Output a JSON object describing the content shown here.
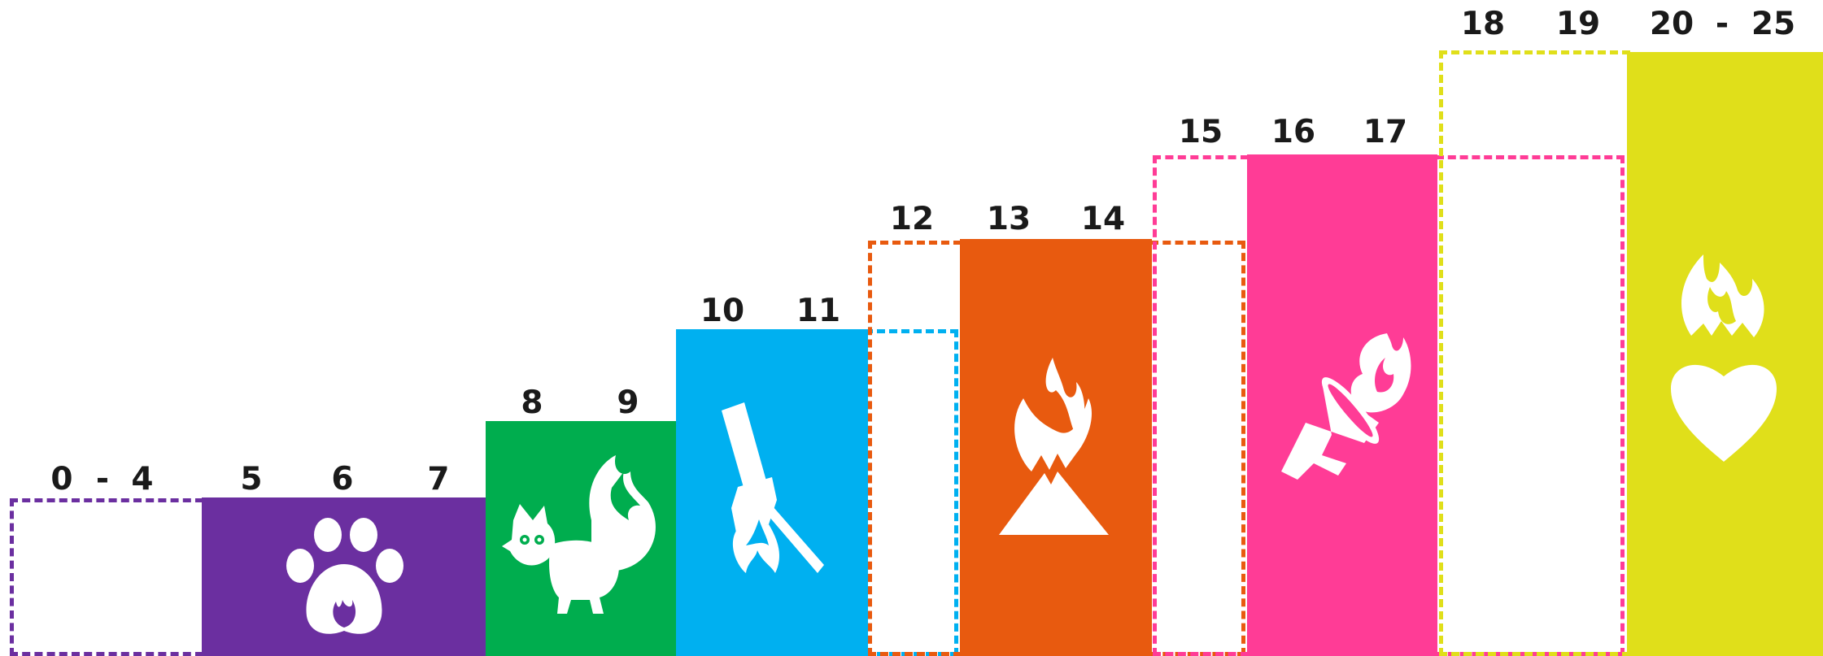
{
  "colors": {
    "purple": "#6B2FA0",
    "green": "#00AD4E",
    "blue": "#00B0F0",
    "orange": "#E85A0F",
    "pink": "#FF3C96",
    "yellow": "#E0DF1A"
  },
  "age_labels": {
    "purple_range": {
      "from": "0",
      "dash": "-",
      "to": "4"
    },
    "purple_ages": [
      "5",
      "6",
      "7"
    ],
    "green_ages": [
      "8",
      "9"
    ],
    "blue_ages": [
      "10",
      "11"
    ],
    "orange_ages": [
      "12",
      "13",
      "14"
    ],
    "pink_ages": [
      "15",
      "16",
      "17"
    ],
    "yellow_ages": [
      "18",
      "19"
    ],
    "yellow_range": {
      "from": "20",
      "dash": "-",
      "to": "25"
    }
  },
  "icons": [
    "paw-flame-icon",
    "fox-icon",
    "torch-icon",
    "mountain-flame-icon",
    "megaphone-flame-icon",
    "heart-flame-icon"
  ]
}
